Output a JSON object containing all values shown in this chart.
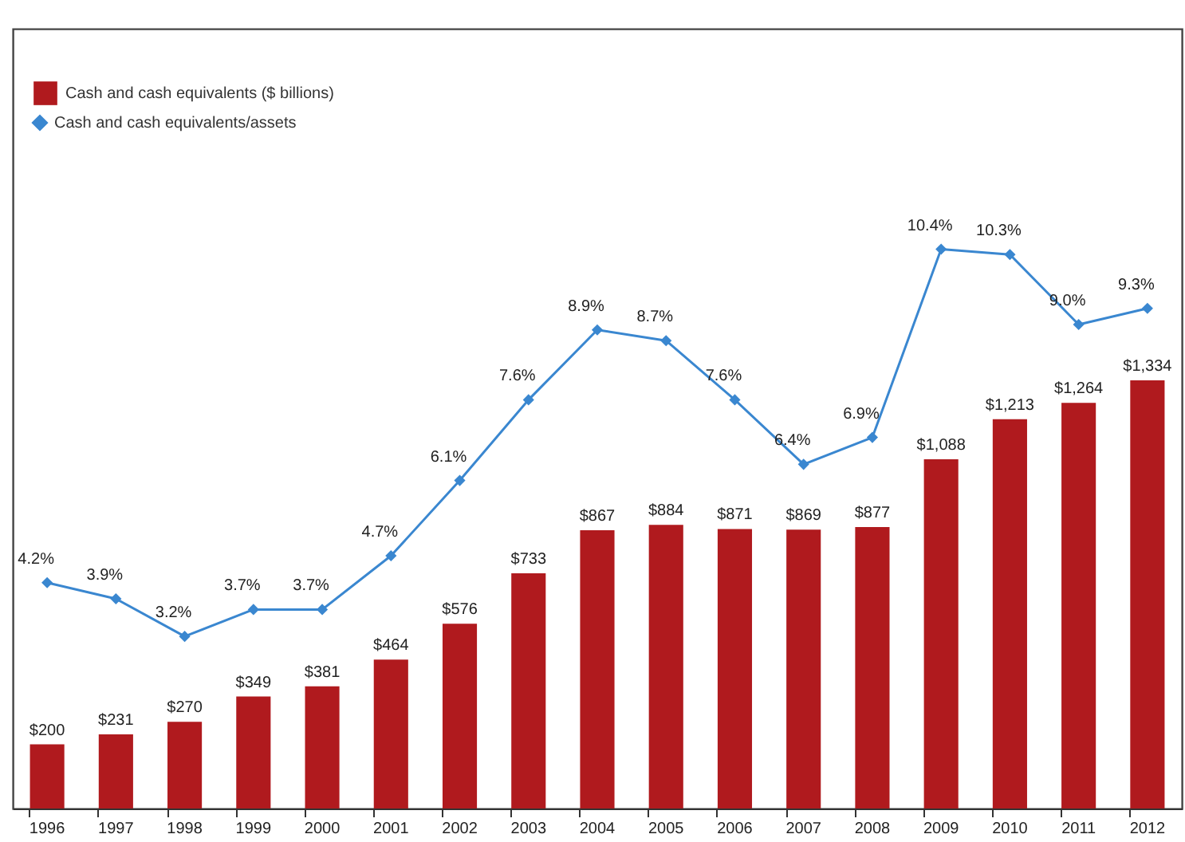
{
  "chart_data": {
    "type": "bar",
    "categories": [
      "1996",
      "1997",
      "1998",
      "1999",
      "2000",
      "2001",
      "2002",
      "2003",
      "2004",
      "2005",
      "2006",
      "2007",
      "2008",
      "2009",
      "2010",
      "2011",
      "2012"
    ],
    "series": [
      {
        "name": "Cash and cash equivalents ($ billions)",
        "type": "bar",
        "color": "#b01a1e",
        "values": [
          200,
          231,
          270,
          349,
          381,
          464,
          576,
          733,
          867,
          884,
          871,
          869,
          877,
          1088,
          1213,
          1264,
          1334
        ],
        "value_labels": [
          "$200",
          "$231",
          "$270",
          "$349",
          "$381",
          "$464",
          "$576",
          "$733",
          "$867",
          "$884",
          "$871",
          "$869",
          "$877",
          "$1,088",
          "$1,213",
          "$1,264",
          "$1,334"
        ]
      },
      {
        "name": "Cash and cash equivalents/assets",
        "type": "line",
        "axis": "y2",
        "color": "#3a87d0",
        "marker": "diamond",
        "values": [
          4.2,
          3.9,
          3.2,
          3.7,
          3.7,
          4.7,
          6.1,
          7.6,
          8.9,
          8.7,
          7.6,
          6.4,
          6.9,
          10.4,
          10.3,
          9.0,
          9.3
        ],
        "value_labels": [
          "4.2%",
          "3.9%",
          "3.2%",
          "3.7%",
          "3.7%",
          "4.7%",
          "6.1%",
          "7.6%",
          "8.9%",
          "8.7%",
          "7.6%",
          "6.4%",
          "6.9%",
          "10.4%",
          "10.3%",
          "9.0%",
          "9.3%"
        ]
      }
    ],
    "ylim": [
      0,
      2430
    ],
    "y2lim": [
      0,
      14.5
    ],
    "legend": "top left",
    "grid": false,
    "tick_labels": "x"
  }
}
